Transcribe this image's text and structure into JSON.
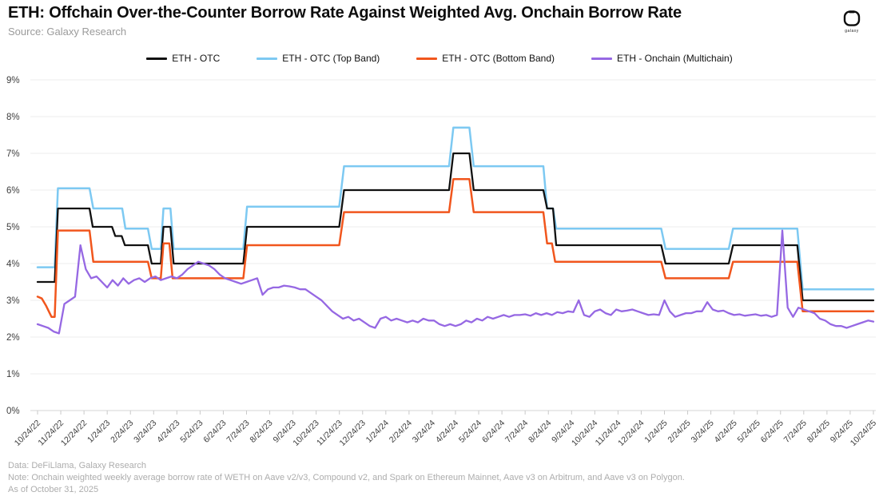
{
  "header": {
    "title": "ETH: Offchain Over-the-Counter Borrow Rate Against Weighted Avg. Onchain Borrow Rate",
    "source": "Source: Galaxy Research",
    "logo_word": "galaxy"
  },
  "legend": [
    {
      "label": "ETH - OTC",
      "color": "#111111"
    },
    {
      "label": "ETH - OTC (Top Band)",
      "color": "#7DC9F2"
    },
    {
      "label": "ETH - OTC (Bottom Band)",
      "color": "#F1561D"
    },
    {
      "label": "ETH - Onchain (Multichain)",
      "color": "#9668E3"
    }
  ],
  "chart_data": {
    "type": "line",
    "x_unit": "weeks since 10/24/22",
    "x_tick_labels": [
      "10/24/22",
      "11/24/22",
      "12/24/22",
      "1/24/23",
      "2/24/23",
      "3/24/23",
      "4/24/23",
      "5/24/23",
      "6/24/23",
      "7/24/23",
      "8/24/23",
      "9/24/23",
      "10/24/23",
      "11/24/23",
      "12/24/23",
      "1/24/24",
      "2/24/24",
      "3/24/24",
      "4/24/24",
      "5/24/24",
      "6/24/24",
      "7/24/24",
      "8/24/24",
      "9/24/24",
      "10/24/24",
      "11/24/24",
      "12/24/24",
      "1/24/25",
      "2/24/25",
      "3/24/25",
      "4/24/25",
      "5/24/25",
      "6/24/25",
      "7/24/25",
      "8/24/25",
      "9/24/25",
      "10/24/25"
    ],
    "weeks_per_tick": 4.3333,
    "y_tick_labels": [
      "0%",
      "1%",
      "2%",
      "3%",
      "4%",
      "5%",
      "6%",
      "7%",
      "8%",
      "9%"
    ],
    "ylim": [
      0,
      9
    ],
    "grid": "horizontal",
    "legend_position": "top-center",
    "series": [
      {
        "name": "ETH - OTC (Top Band)",
        "color": "#7DC9F2",
        "width": 2.5,
        "mode": "breakpoints",
        "points": [
          [
            0,
            3.9
          ],
          [
            3.2,
            3.9
          ],
          [
            3.8,
            6.05
          ],
          [
            9.7,
            6.05
          ],
          [
            10.4,
            5.5
          ],
          [
            15.8,
            5.5
          ],
          [
            16.4,
            4.95
          ],
          [
            20.6,
            4.95
          ],
          [
            21.3,
            4.4
          ],
          [
            23.0,
            4.4
          ],
          [
            23.5,
            5.5
          ],
          [
            24.8,
            5.5
          ],
          [
            25.4,
            4.4
          ],
          [
            38.4,
            4.4
          ],
          [
            39.1,
            5.55
          ],
          [
            56.3,
            5.55
          ],
          [
            57.2,
            6.65
          ],
          [
            76.8,
            6.65
          ],
          [
            77.6,
            7.7
          ],
          [
            80.6,
            7.7
          ],
          [
            81.4,
            6.65
          ],
          [
            94.4,
            6.65
          ],
          [
            95.1,
            5.5
          ],
          [
            96.2,
            5.5
          ],
          [
            96.8,
            4.95
          ],
          [
            116.4,
            4.95
          ],
          [
            117.2,
            4.4
          ],
          [
            129.0,
            4.4
          ],
          [
            129.8,
            4.95
          ],
          [
            141.8,
            4.95
          ],
          [
            142.8,
            3.3
          ],
          [
            156,
            3.3
          ]
        ]
      },
      {
        "name": "ETH - OTC",
        "color": "#111111",
        "width": 2.3,
        "mode": "breakpoints",
        "points": [
          [
            0,
            3.5
          ],
          [
            3.2,
            3.5
          ],
          [
            3.8,
            5.5
          ],
          [
            9.7,
            5.5
          ],
          [
            10.3,
            5.0
          ],
          [
            13.9,
            5.0
          ],
          [
            14.5,
            4.75
          ],
          [
            15.7,
            4.75
          ],
          [
            16.3,
            4.5
          ],
          [
            20.6,
            4.5
          ],
          [
            21.3,
            4.0
          ],
          [
            23.0,
            4.0
          ],
          [
            23.5,
            5.0
          ],
          [
            24.8,
            5.0
          ],
          [
            25.4,
            4.0
          ],
          [
            38.4,
            4.0
          ],
          [
            39.1,
            5.0
          ],
          [
            56.3,
            5.0
          ],
          [
            57.2,
            6.0
          ],
          [
            76.8,
            6.0
          ],
          [
            77.6,
            7.0
          ],
          [
            80.6,
            7.0
          ],
          [
            81.4,
            6.0
          ],
          [
            94.4,
            6.0
          ],
          [
            95.1,
            5.5
          ],
          [
            96.2,
            5.5
          ],
          [
            96.8,
            4.5
          ],
          [
            116.4,
            4.5
          ],
          [
            117.2,
            4.0
          ],
          [
            129.0,
            4.0
          ],
          [
            129.8,
            4.5
          ],
          [
            141.8,
            4.5
          ],
          [
            142.8,
            3.0
          ],
          [
            156,
            3.0
          ]
        ]
      },
      {
        "name": "ETH - OTC (Bottom Band)",
        "color": "#F1561D",
        "width": 2.5,
        "mode": "breakpoints",
        "points": [
          [
            0,
            3.1
          ],
          [
            0.8,
            3.05
          ],
          [
            1.6,
            2.85
          ],
          [
            2.6,
            2.55
          ],
          [
            3.2,
            2.55
          ],
          [
            3.8,
            4.9
          ],
          [
            9.7,
            4.9
          ],
          [
            10.4,
            4.05
          ],
          [
            20.6,
            4.05
          ],
          [
            21.3,
            3.6
          ],
          [
            23.0,
            3.6
          ],
          [
            23.5,
            4.55
          ],
          [
            24.6,
            4.55
          ],
          [
            25.2,
            3.6
          ],
          [
            38.4,
            3.6
          ],
          [
            39.1,
            4.5
          ],
          [
            56.3,
            4.5
          ],
          [
            57.2,
            5.4
          ],
          [
            76.8,
            5.4
          ],
          [
            77.6,
            6.3
          ],
          [
            80.6,
            6.3
          ],
          [
            81.4,
            5.4
          ],
          [
            94.4,
            5.4
          ],
          [
            95.1,
            4.55
          ],
          [
            96.0,
            4.55
          ],
          [
            96.6,
            4.05
          ],
          [
            116.4,
            4.05
          ],
          [
            117.2,
            3.6
          ],
          [
            129.0,
            3.6
          ],
          [
            129.8,
            4.05
          ],
          [
            141.8,
            4.05
          ],
          [
            142.8,
            2.7
          ],
          [
            156,
            2.7
          ]
        ]
      },
      {
        "name": "ETH - Onchain (Multichain)",
        "color": "#9668E3",
        "width": 2.3,
        "mode": "weekly",
        "values": [
          2.35,
          2.3,
          2.25,
          2.15,
          2.1,
          2.9,
          3.0,
          3.1,
          4.5,
          3.85,
          3.6,
          3.65,
          3.5,
          3.35,
          3.55,
          3.4,
          3.6,
          3.45,
          3.55,
          3.6,
          3.5,
          3.6,
          3.65,
          3.55,
          3.6,
          3.65,
          3.6,
          3.7,
          3.85,
          3.95,
          4.05,
          4.0,
          3.95,
          3.85,
          3.7,
          3.6,
          3.55,
          3.5,
          3.45,
          3.5,
          3.55,
          3.6,
          3.15,
          3.3,
          3.35,
          3.35,
          3.4,
          3.38,
          3.35,
          3.3,
          3.3,
          3.2,
          3.1,
          3.0,
          2.85,
          2.7,
          2.6,
          2.5,
          2.55,
          2.45,
          2.5,
          2.4,
          2.3,
          2.25,
          2.5,
          2.55,
          2.45,
          2.5,
          2.45,
          2.4,
          2.45,
          2.4,
          2.5,
          2.45,
          2.45,
          2.35,
          2.3,
          2.35,
          2.3,
          2.35,
          2.45,
          2.4,
          2.5,
          2.45,
          2.55,
          2.5,
          2.55,
          2.6,
          2.55,
          2.6,
          2.6,
          2.62,
          2.58,
          2.65,
          2.6,
          2.65,
          2.6,
          2.68,
          2.65,
          2.7,
          2.68,
          3.0,
          2.6,
          2.55,
          2.7,
          2.75,
          2.65,
          2.6,
          2.75,
          2.7,
          2.72,
          2.75,
          2.7,
          2.65,
          2.6,
          2.62,
          2.6,
          3.0,
          2.7,
          2.55,
          2.6,
          2.65,
          2.65,
          2.7,
          2.7,
          2.95,
          2.75,
          2.7,
          2.72,
          2.65,
          2.6,
          2.62,
          2.58,
          2.6,
          2.62,
          2.58,
          2.6,
          2.55,
          2.6,
          4.9,
          2.8,
          2.55,
          2.8,
          2.75,
          2.7,
          2.65,
          2.5,
          2.45,
          2.35,
          2.3,
          2.3,
          2.25,
          2.3,
          2.35,
          2.4,
          2.45,
          2.42
        ]
      }
    ],
    "colors": {
      "grid": "#ededed",
      "axis": "#d5d5d5",
      "tick": "#c9c9c9",
      "y_label": "#3d3d3d",
      "x_label": "#3d3d3d"
    }
  },
  "footer": {
    "line1": "Data: DeFiLlama, Galaxy Research",
    "line2": "Note: Onchain weighted weekly average borrow rate of WETH on Aave v2/v3, Compound v2, and Spark on Ethereum Mainnet, Aave v3 on Arbitrum, and Aave v3 on Polygon.",
    "line3": "As of October 31, 2025"
  }
}
